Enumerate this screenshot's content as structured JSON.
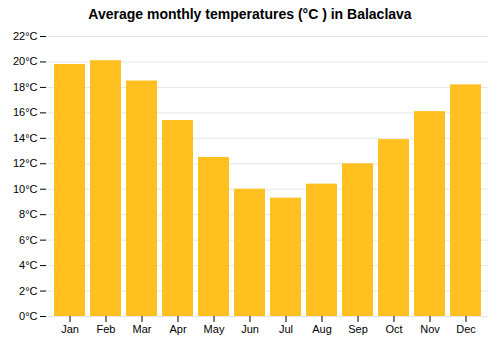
{
  "chart_data": {
    "type": "bar",
    "title": "Average monthly temperatures (°C ) in Balaclava",
    "categories": [
      "Jan",
      "Feb",
      "Mar",
      "Apr",
      "May",
      "Jun",
      "Jul",
      "Aug",
      "Sep",
      "Oct",
      "Nov",
      "Dec"
    ],
    "values": [
      19.8,
      20.1,
      18.5,
      15.4,
      12.5,
      10.0,
      9.3,
      10.4,
      12.0,
      13.9,
      16.1,
      18.2
    ],
    "color": "#FFC020",
    "ylim": [
      0,
      22
    ],
    "yticks": [
      {
        "value": 0,
        "label": "0°C"
      },
      {
        "value": 2,
        "label": "2°C"
      },
      {
        "value": 4,
        "label": "4°C"
      },
      {
        "value": 6,
        "label": "6°C"
      },
      {
        "value": 8,
        "label": "8°C"
      },
      {
        "value": 10,
        "label": "10°C"
      },
      {
        "value": 12,
        "label": "12°C"
      },
      {
        "value": 14,
        "label": "14°C"
      },
      {
        "value": 16,
        "label": "16°C"
      },
      {
        "value": 18,
        "label": "18°C"
      },
      {
        "value": 20,
        "label": "20°C"
      },
      {
        "value": 22,
        "label": "22°C"
      }
    ],
    "grid": true
  }
}
